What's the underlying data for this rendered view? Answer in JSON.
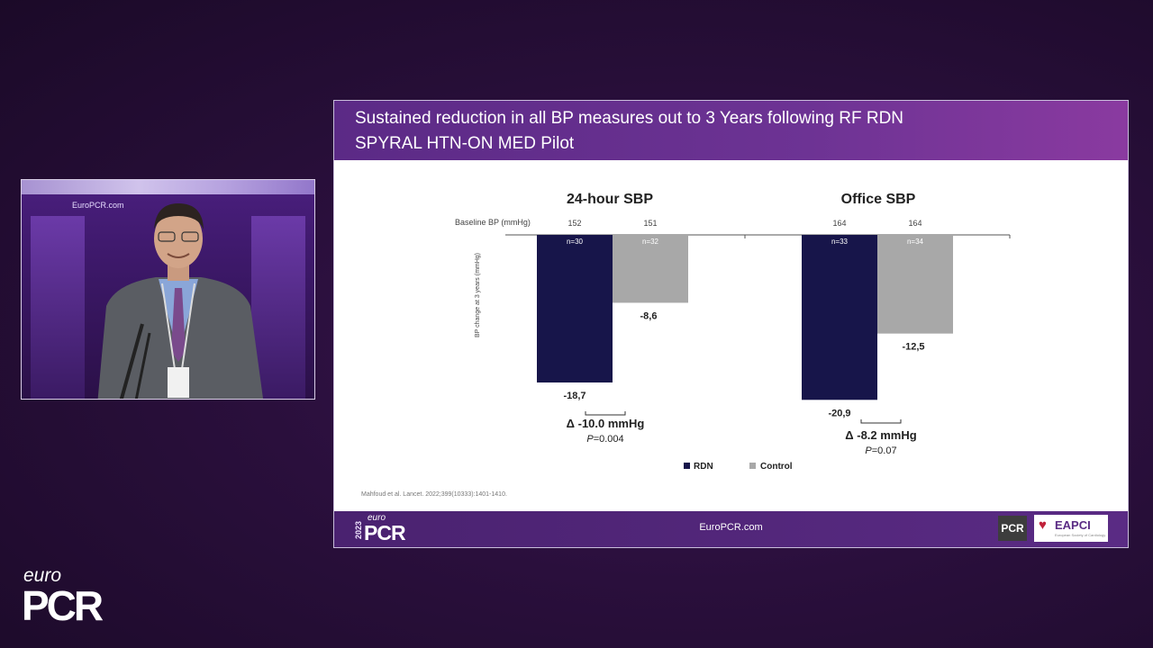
{
  "video": {
    "brand": "EuroPCR.com"
  },
  "slide": {
    "title_line1": "Sustained reduction in all BP measures out to 3 Years following RF RDN",
    "title_line2": "SPYRAL HTN-ON MED Pilot",
    "citation": "Mahfoud et al. Lancet. 2022;399(10333):1401-1410.",
    "footer": {
      "year": "2023",
      "logo_euro": "euro",
      "logo_pcr": "PCR",
      "url": "EuroPCR.com",
      "pcr_badge": "PCR",
      "eapci": "EAPCI",
      "eapci_sub": "European Society of Cardiology"
    }
  },
  "chart_data": {
    "type": "bar",
    "y_axis_label": "BP change at 3 years (mmHg)",
    "baseline_label": "Baseline BP (mmHg)",
    "legend": [
      {
        "name": "RDN",
        "color": "#17154a"
      },
      {
        "name": "Control",
        "color": "#a8a8a8"
      }
    ],
    "panels": [
      {
        "title": "24-hour SBP",
        "bars": [
          {
            "series": "RDN",
            "baseline": "152",
            "n": "n=30",
            "value": -18.7,
            "label": "-18,7"
          },
          {
            "series": "Control",
            "baseline": "151",
            "n": "n=32",
            "value": -8.6,
            "label": "-8,6"
          }
        ],
        "delta": "Δ -10.0 mmHg",
        "p_prefix": "P",
        "p_value": "=0.004"
      },
      {
        "title": "Office SBP",
        "bars": [
          {
            "series": "RDN",
            "baseline": "164",
            "n": "n=33",
            "value": -20.9,
            "label": "-20,9"
          },
          {
            "series": "Control",
            "baseline": "164",
            "n": "n=34",
            "value": -12.5,
            "label": "-12,5"
          }
        ],
        "delta": "Δ -8.2 mmHg",
        "p_prefix": "P",
        "p_value": "=0.07"
      }
    ]
  },
  "corner_logo": {
    "euro": "euro",
    "pcr": "PCR"
  }
}
